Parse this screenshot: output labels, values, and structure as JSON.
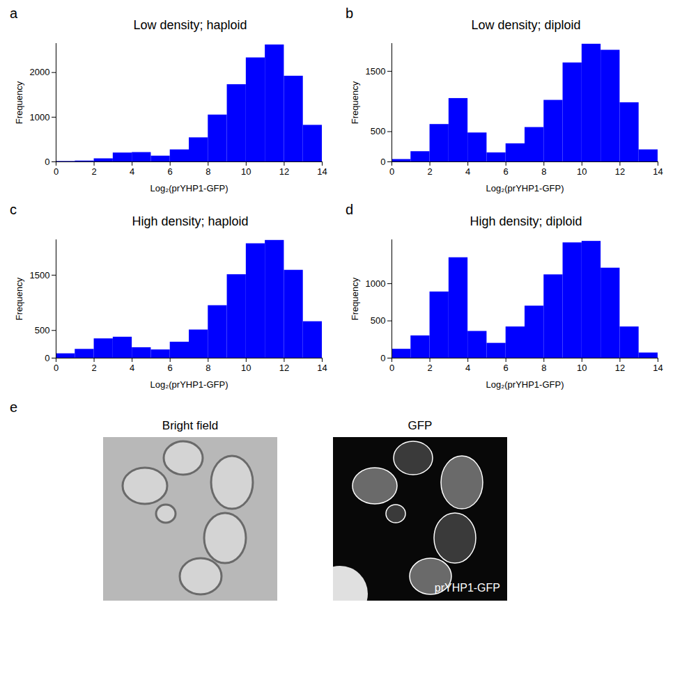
{
  "chart_data": [
    {
      "type": "histogram",
      "panel_label": "a",
      "title": "Low density; haploid",
      "xlabel": "Log₂(prYHP1-GFP)",
      "ylabel": "Frequency",
      "color": "#0000ff",
      "bins": [
        0,
        1,
        2,
        3,
        4,
        5,
        6,
        7,
        8,
        9,
        10,
        11,
        12,
        13,
        14
      ],
      "values": [
        10,
        20,
        70,
        200,
        210,
        130,
        270,
        540,
        1050,
        1730,
        2330,
        2620,
        1920,
        820
      ],
      "xlim": [
        0,
        14
      ],
      "xticks": [
        0,
        2,
        4,
        6,
        8,
        10,
        12,
        14
      ],
      "ylim": [
        0,
        2650
      ],
      "yticks": [
        0,
        1000,
        2000
      ]
    },
    {
      "type": "histogram",
      "panel_label": "b",
      "title": "Low density; diploid",
      "xlabel": "Log₂(prYHP1-GFP)",
      "ylabel": "Frequency",
      "color": "#0000ff",
      "bins": [
        0,
        1,
        2,
        3,
        4,
        5,
        6,
        7,
        8,
        9,
        10,
        11,
        12,
        13,
        14
      ],
      "values": [
        40,
        170,
        620,
        1050,
        480,
        150,
        300,
        570,
        1020,
        1640,
        1950,
        1850,
        980,
        200
      ],
      "xlim": [
        0,
        14
      ],
      "xticks": [
        0,
        2,
        4,
        6,
        8,
        10,
        12,
        14
      ],
      "ylim": [
        0,
        1960
      ],
      "yticks": [
        0,
        500,
        1500
      ]
    },
    {
      "type": "histogram",
      "panel_label": "c",
      "title": "High density; haploid",
      "xlabel": "Log₂(prYHP1-GFP)",
      "ylabel": "Frequency",
      "color": "#0000ff",
      "bins": [
        0,
        1,
        2,
        3,
        4,
        5,
        6,
        7,
        8,
        9,
        10,
        11,
        12,
        13,
        14
      ],
      "values": [
        80,
        160,
        350,
        380,
        190,
        150,
        290,
        510,
        950,
        1510,
        2070,
        2130,
        1590,
        660
      ],
      "xlim": [
        0,
        14
      ],
      "xticks": [
        0,
        2,
        4,
        6,
        8,
        10,
        12,
        14
      ],
      "ylim": [
        0,
        2140
      ],
      "yticks": [
        0,
        500,
        1500
      ]
    },
    {
      "type": "histogram",
      "panel_label": "d",
      "title": "High density; diploid",
      "xlabel": "Log₂(prYHP1-GFP)",
      "ylabel": "Frequency",
      "color": "#0000ff",
      "bins": [
        0,
        1,
        2,
        3,
        4,
        5,
        6,
        7,
        8,
        9,
        10,
        11,
        12,
        13,
        14
      ],
      "values": [
        120,
        300,
        890,
        1350,
        360,
        200,
        420,
        700,
        1120,
        1550,
        1570,
        1210,
        420,
        70
      ],
      "xlim": [
        0,
        14
      ],
      "xticks": [
        0,
        2,
        4,
        6,
        8,
        10,
        12,
        14
      ],
      "ylim": [
        0,
        1590
      ],
      "yticks": [
        0,
        500,
        1000
      ]
    }
  ],
  "image_panel": {
    "panel_label": "e",
    "images": [
      {
        "title": "Bright field"
      },
      {
        "title": "GFP",
        "annotation": "prYHP1-GFP"
      }
    ]
  }
}
